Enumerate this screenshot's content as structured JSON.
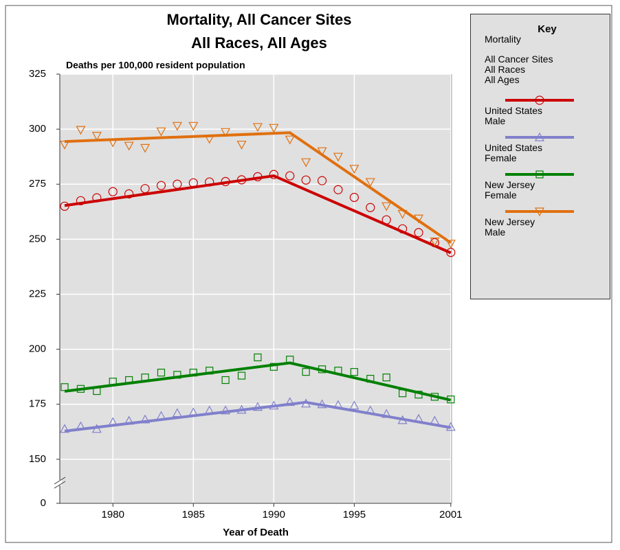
{
  "chart_data": {
    "type": "line",
    "title": [
      "Mortality, All Cancer Sites",
      "All Races, All Ages"
    ],
    "subtitle": "Deaths per 100,000 resident population",
    "x_label": "Year of Death",
    "x": [
      1977,
      1978,
      1979,
      1980,
      1981,
      1982,
      1983,
      1984,
      1985,
      1986,
      1987,
      1988,
      1989,
      1990,
      1991,
      1992,
      1993,
      1994,
      1995,
      1996,
      1997,
      1998,
      1999,
      2000,
      2001
    ],
    "xlim": [
      1976.7,
      2001.05
    ],
    "xticks": [
      1980,
      1985,
      1990,
      1995,
      2001
    ],
    "ylim": [
      0,
      325
    ],
    "y_break": [
      0,
      130
    ],
    "yticks": [
      0,
      150,
      175,
      200,
      225,
      250,
      275,
      300,
      325
    ],
    "grid": true,
    "legend": {
      "title": "Key",
      "lines": [
        "Mortality",
        "All Cancer Sites",
        "All Races",
        "All Ages"
      ],
      "position": "right"
    },
    "series": [
      {
        "name": "United States Male",
        "color": "#cc0000",
        "marker": "circle",
        "values": [
          265,
          267.5,
          268.8,
          271.6,
          270.6,
          273,
          274.4,
          275,
          275.6,
          276,
          276.2,
          277,
          278.4,
          279.4,
          278.8,
          276.9,
          276.6,
          272.5,
          269,
          264.4,
          258.8,
          254.7,
          253,
          248.4,
          244
        ],
        "trend": {
          "x": [
            1977,
            1990,
            2001
          ],
          "values": [
            265.3,
            278.8,
            243.8
          ]
        }
      },
      {
        "name": "United States Female",
        "color": "#8080cc",
        "marker": "triangle-up",
        "values": [
          163.8,
          165,
          163.8,
          166.9,
          167.5,
          168.1,
          169.7,
          171,
          171.3,
          172.2,
          172.2,
          172.5,
          173.8,
          174.4,
          176,
          175.3,
          175,
          174.7,
          174.4,
          172.2,
          170.6,
          167.8,
          168.4,
          167.5,
          164.7
        ],
        "trend": {
          "x": [
            1977,
            1992,
            2001
          ],
          "values": [
            162.8,
            175.9,
            164.4
          ]
        }
      },
      {
        "name": "New Jersey Female",
        "color": "#008000",
        "marker": "square",
        "values": [
          182.8,
          182,
          181,
          185.3,
          186,
          187.2,
          189.4,
          188.4,
          189.4,
          190.3,
          186,
          188,
          196.3,
          192,
          195.3,
          189.7,
          190.9,
          190.3,
          189.7,
          186.6,
          187.2,
          180,
          179.4,
          178.4,
          177.2
        ],
        "trend": {
          "x": [
            1977,
            1991,
            2001
          ],
          "values": [
            180.9,
            193.8,
            176.9
          ]
        }
      },
      {
        "name": "New Jersey Male",
        "color": "#e07010",
        "marker": "triangle-down",
        "values": [
          293,
          299.7,
          297,
          294,
          292.5,
          291.5,
          299,
          301.5,
          301.5,
          295.6,
          298.7,
          293,
          301,
          300.6,
          295.3,
          285,
          290,
          287.5,
          282,
          276,
          265,
          261.5,
          259.4,
          249,
          248
        ],
        "trend": {
          "x": [
            1977,
            1991,
            2001
          ],
          "values": [
            294.4,
            298.4,
            248.4
          ]
        }
      }
    ]
  }
}
